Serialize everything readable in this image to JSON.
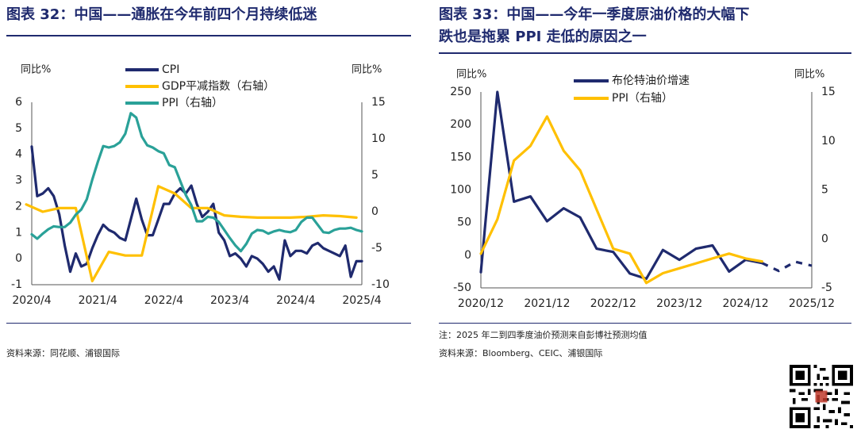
{
  "charts": [
    {
      "title_line1": "图表 32：中国——通胀在今年前四个月持续低迷",
      "title_line2": "",
      "source": "资料来源：同花顺、浦银国际",
      "note": "",
      "left_axis_label": "同比%",
      "right_axis_label": "同比%"
    },
    {
      "title_line1": "图表 33：中国——今年一季度原油价格的大幅下",
      "title_line2": "跌也是拖累 PPI 走低的原因之一",
      "note": "注：2025 年二到四季度油价预测来自彭博社预测均值",
      "source": "资料来源：Bloomberg、CEIC、浦银国际",
      "left_axis_label": "同比%",
      "right_axis_label": "同比%"
    }
  ],
  "colors": {
    "navy": "#1f2a6e",
    "gold": "#ffc000",
    "teal": "#2aa198"
  },
  "icons": {
    "qr": "qr-code-icon"
  },
  "chart_data": [
    {
      "type": "line",
      "x_tick_labels": [
        "2020/4",
        "2021/4",
        "2022/4",
        "2023/4",
        "2024/4",
        "2025/4"
      ],
      "y_left_ticks": [
        "-1",
        "0",
        "1",
        "2",
        "3",
        "4",
        "5",
        "6"
      ],
      "y_right_ticks": [
        "-10",
        "-5",
        "0",
        "5",
        "10",
        "15"
      ],
      "ylim_left": [
        -1,
        6
      ],
      "ylim_right": [
        -10,
        15
      ],
      "grid": false,
      "legend_position": "top-center",
      "series": [
        {
          "name": "CPI",
          "axis": "left",
          "color_key": "navy",
          "x": [
            "2020/4",
            "2020/5",
            "2020/6",
            "2020/7",
            "2020/8",
            "2020/9",
            "2020/10",
            "2020/11",
            "2020/12",
            "2021/1",
            "2021/2",
            "2021/3",
            "2021/4",
            "2021/5",
            "2021/6",
            "2021/7",
            "2021/8",
            "2021/9",
            "2021/10",
            "2021/11",
            "2021/12",
            "2022/1",
            "2022/2",
            "2022/3",
            "2022/4",
            "2022/5",
            "2022/6",
            "2022/7",
            "2022/8",
            "2022/9",
            "2022/10",
            "2022/11",
            "2022/12",
            "2023/1",
            "2023/2",
            "2023/3",
            "2023/4",
            "2023/5",
            "2023/6",
            "2023/7",
            "2023/8",
            "2023/9",
            "2023/10",
            "2023/11",
            "2023/12",
            "2024/1",
            "2024/2",
            "2024/3",
            "2024/4",
            "2024/5",
            "2024/6",
            "2024/7",
            "2024/8",
            "2024/9",
            "2024/10",
            "2024/11",
            "2024/12",
            "2025/1",
            "2025/2",
            "2025/3",
            "2025/4"
          ],
          "y": [
            4.3,
            2.4,
            2.5,
            2.7,
            2.4,
            1.7,
            0.5,
            -0.5,
            0.2,
            -0.3,
            -0.2,
            0.4,
            0.9,
            1.3,
            1.1,
            1.0,
            0.8,
            0.7,
            1.5,
            2.3,
            1.5,
            0.9,
            0.9,
            1.5,
            2.1,
            2.1,
            2.5,
            2.7,
            2.5,
            2.8,
            2.1,
            1.6,
            1.8,
            2.1,
            1.0,
            0.7,
            0.1,
            0.2,
            0.0,
            -0.3,
            0.1,
            0.0,
            -0.2,
            -0.5,
            -0.3,
            -0.8,
            0.7,
            0.1,
            0.3,
            0.3,
            0.2,
            0.5,
            0.6,
            0.4,
            0.3,
            0.2,
            0.1,
            0.5,
            -0.7,
            -0.1,
            -0.1
          ]
        },
        {
          "name": "GDP平减指数（右轴）",
          "axis": "right",
          "color_key": "gold",
          "x": [
            "2020/3",
            "2020/6",
            "2020/9",
            "2020/12",
            "2021/3",
            "2021/6",
            "2021/9",
            "2021/12",
            "2022/3",
            "2022/6",
            "2022/9",
            "2022/12",
            "2023/3",
            "2023/6",
            "2023/9",
            "2023/12",
            "2024/3",
            "2024/6",
            "2024/9",
            "2024/12",
            "2025/3"
          ],
          "y": [
            1.0,
            0.0,
            0.5,
            0.5,
            -9.5,
            -5.5,
            -6.0,
            -6.0,
            3.5,
            2.5,
            0.5,
            0.5,
            -0.5,
            -0.7,
            -0.8,
            -0.8,
            -0.8,
            -0.7,
            -0.5,
            -0.6,
            -0.8
          ]
        },
        {
          "name": "PPI（右轴）",
          "axis": "right",
          "color_key": "teal",
          "x": [
            "2020/4",
            "2020/5",
            "2020/6",
            "2020/7",
            "2020/8",
            "2020/9",
            "2020/10",
            "2020/11",
            "2020/12",
            "2021/1",
            "2021/2",
            "2021/3",
            "2021/4",
            "2021/5",
            "2021/6",
            "2021/7",
            "2021/8",
            "2021/9",
            "2021/10",
            "2021/11",
            "2021/12",
            "2022/1",
            "2022/2",
            "2022/3",
            "2022/4",
            "2022/5",
            "2022/6",
            "2022/7",
            "2022/8",
            "2022/9",
            "2022/10",
            "2022/11",
            "2022/12",
            "2023/1",
            "2023/2",
            "2023/3",
            "2023/4",
            "2023/5",
            "2023/6",
            "2023/7",
            "2023/8",
            "2023/9",
            "2023/10",
            "2023/11",
            "2023/12",
            "2024/1",
            "2024/2",
            "2024/3",
            "2024/4",
            "2024/5",
            "2024/6",
            "2024/7",
            "2024/8",
            "2024/9",
            "2024/10",
            "2024/11",
            "2024/12",
            "2025/1",
            "2025/2",
            "2025/3",
            "2025/4"
          ],
          "y": [
            -3.1,
            -3.7,
            -3.0,
            -2.4,
            -2.0,
            -2.1,
            -2.1,
            -1.5,
            -0.4,
            0.3,
            1.7,
            4.4,
            6.8,
            9.0,
            8.8,
            9.0,
            9.5,
            10.7,
            13.5,
            12.9,
            10.3,
            9.1,
            8.8,
            8.3,
            8.0,
            6.4,
            6.1,
            4.2,
            2.3,
            0.9,
            -1.3,
            -1.3,
            -0.7,
            -0.8,
            -1.4,
            -2.5,
            -3.6,
            -4.6,
            -5.4,
            -4.4,
            -3.0,
            -2.5,
            -2.6,
            -3.0,
            -2.7,
            -2.5,
            -2.7,
            -2.8,
            -2.5,
            -1.4,
            -0.8,
            -0.8,
            -1.8,
            -2.8,
            -2.9,
            -2.5,
            -2.3,
            -2.3,
            -2.2,
            -2.5,
            -2.7
          ]
        }
      ]
    },
    {
      "type": "line",
      "x_tick_labels": [
        "2020/12",
        "2021/12",
        "2022/12",
        "2023/12",
        "2024/12",
        "2025/12"
      ],
      "y_left_ticks": [
        "-50",
        "0",
        "50",
        "100",
        "150",
        "200",
        "250"
      ],
      "y_right_ticks": [
        "-5",
        "0",
        "5",
        "10",
        "15"
      ],
      "ylim_left": [
        -50,
        250
      ],
      "ylim_right": [
        -5,
        15
      ],
      "grid": false,
      "legend_position": "top-center",
      "series": [
        {
          "name": "布伦特油价增速",
          "axis": "left",
          "color_key": "navy",
          "x": [
            "2020/12",
            "2021/3",
            "2021/6",
            "2021/9",
            "2021/12",
            "2022/3",
            "2022/6",
            "2022/9",
            "2022/12",
            "2023/3",
            "2023/6",
            "2023/9",
            "2023/12",
            "2024/3",
            "2024/6",
            "2024/9",
            "2024/12",
            "2025/3"
          ],
          "y": [
            -26,
            250,
            82,
            90,
            52,
            72,
            58,
            10,
            5,
            -28,
            -36,
            8,
            -7,
            10,
            15,
            -25,
            -7,
            -12
          ],
          "forecast": {
            "x": [
              "2025/3",
              "2025/6",
              "2025/9",
              "2025/12"
            ],
            "y": [
              -12,
              -24,
              -10,
              -16
            ]
          }
        },
        {
          "name": "PPI（右轴）",
          "axis": "right",
          "color_key": "gold",
          "x": [
            "2020/12",
            "2021/3",
            "2021/6",
            "2021/9",
            "2021/12",
            "2022/3",
            "2022/6",
            "2022/9",
            "2022/12",
            "2023/3",
            "2023/6",
            "2023/9",
            "2023/12",
            "2024/3",
            "2024/6",
            "2024/9",
            "2024/12",
            "2025/3"
          ],
          "y": [
            -1.5,
            2.0,
            8.0,
            9.5,
            12.5,
            9.0,
            7.0,
            3.0,
            -1.0,
            -1.5,
            -4.5,
            -3.5,
            -3.0,
            -2.5,
            -2.0,
            -1.5,
            -2.0,
            -2.3
          ]
        }
      ]
    }
  ]
}
